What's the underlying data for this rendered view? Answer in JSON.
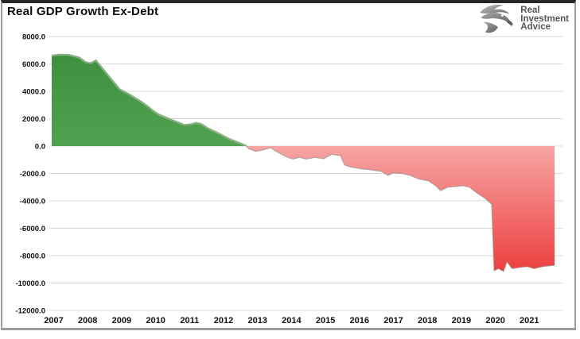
{
  "header": {
    "title": "Real GDP Growth Ex-Debt"
  },
  "logo": {
    "icon": "eagle-icon",
    "line1": "Real",
    "line2": "Investment",
    "line3": "Advice"
  },
  "chart_data": {
    "type": "area",
    "title": "Real GDP Growth Ex-Debt",
    "xlabel": "",
    "ylabel": "",
    "grid": true,
    "legend": "none",
    "ylim": [
      -12000,
      8000
    ],
    "xlim": [
      2006.95,
      2022.05
    ],
    "y_ticks": [
      {
        "value": 8000,
        "label": "8000.0"
      },
      {
        "value": 6000,
        "label": "6000.0"
      },
      {
        "value": 4000,
        "label": "4000.0"
      },
      {
        "value": 2000,
        "label": "2000.0"
      },
      {
        "value": 0,
        "label": "0.0"
      },
      {
        "value": -2000,
        "label": "-2000.0"
      },
      {
        "value": -4000,
        "label": "-4000.0"
      },
      {
        "value": -6000,
        "label": "-6000.0"
      },
      {
        "value": -8000,
        "label": "-8000.0"
      },
      {
        "value": -10000,
        "label": "-10000.0"
      },
      {
        "value": -12000,
        "label": "-12000.0"
      }
    ],
    "x_ticks": [
      "2007",
      "2008",
      "2009",
      "2010",
      "2011",
      "2012",
      "2013",
      "2014",
      "2015",
      "2016",
      "2017",
      "2018",
      "2019",
      "2020",
      "2021"
    ],
    "x": [
      2007.0,
      2007.2,
      2007.5,
      2007.8,
      2008.0,
      2008.15,
      2008.3,
      2008.5,
      2008.75,
      2009.0,
      2009.3,
      2009.6,
      2009.8,
      2010.0,
      2010.15,
      2010.4,
      2010.6,
      2010.9,
      2011.1,
      2011.25,
      2011.4,
      2011.6,
      2011.9,
      2012.2,
      2012.5,
      2012.7,
      2012.8,
      2013.0,
      2013.2,
      2013.45,
      2013.6,
      2013.9,
      2014.1,
      2014.3,
      2014.5,
      2014.75,
      2015.0,
      2015.25,
      2015.5,
      2015.62,
      2015.8,
      2016.1,
      2016.4,
      2016.7,
      2016.9,
      2017.05,
      2017.3,
      2017.55,
      2017.8,
      2018.1,
      2018.3,
      2018.45,
      2018.65,
      2018.9,
      2019.1,
      2019.3,
      2019.5,
      2019.75,
      2019.95,
      2020.02,
      2020.15,
      2020.3,
      2020.4,
      2020.55,
      2020.8,
      2021.0,
      2021.2,
      2021.45,
      2021.8
    ],
    "values": [
      6600,
      6680,
      6660,
      6480,
      6120,
      6050,
      6260,
      5650,
      4900,
      4150,
      3750,
      3300,
      2950,
      2550,
      2300,
      2050,
      1850,
      1550,
      1600,
      1700,
      1620,
      1300,
      950,
      550,
      250,
      50,
      -200,
      -380,
      -300,
      -120,
      -380,
      -780,
      -950,
      -830,
      -950,
      -830,
      -930,
      -600,
      -700,
      -1380,
      -1530,
      -1650,
      -1740,
      -1850,
      -2140,
      -1960,
      -2000,
      -2140,
      -2400,
      -2550,
      -2900,
      -3250,
      -3000,
      -2950,
      -2900,
      -3000,
      -3400,
      -3800,
      -4250,
      -9100,
      -8950,
      -9150,
      -8450,
      -8950,
      -8850,
      -8800,
      -8950,
      -8800,
      -8700
    ],
    "colors": {
      "positive_top": "#3f8f3f",
      "positive_mid": "#55a855",
      "positive_bottom": "#86d07e",
      "positive_edge": "#8cc985",
      "negative_top": "#fdeeee",
      "negative_mid": "#f7b2b0",
      "negative_bottom": "#ee4040",
      "line": "#8a8a8a",
      "gridline": "#d8d8d8",
      "tick_text": "#111111"
    }
  }
}
